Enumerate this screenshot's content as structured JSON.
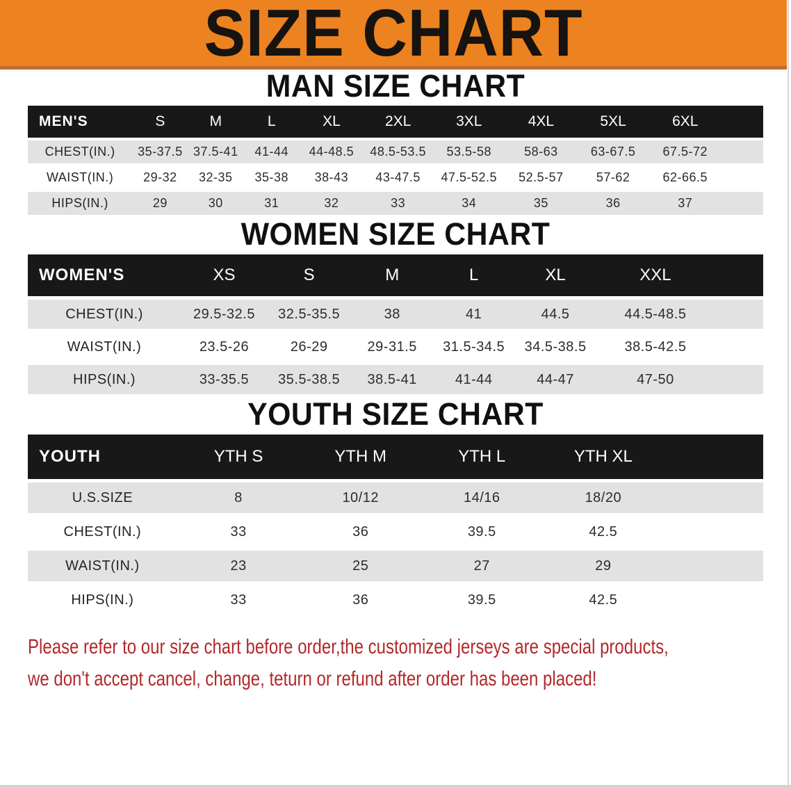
{
  "banner": {
    "title": "SIZE CHART"
  },
  "colors": {
    "banner_orange": "#EC8320",
    "banner_orange_dark_edge": "#BE6C34",
    "table_header_black": "#181818",
    "row_shade_gray": "#E2E2E2",
    "disclaimer_red": "#B2282A"
  },
  "sections": [
    {
      "heading": "MAN SIZE CHART",
      "table": {
        "header_label": "MEN'S",
        "columns": [
          "S",
          "M",
          "L",
          "XL",
          "2XL",
          "3XL",
          "4XL",
          "5XL",
          "6XL"
        ],
        "rows": [
          {
            "label": "CHEST(IN.)",
            "values": [
              "35-37.5",
              "37.5-41",
              "41-44",
              "44-48.5",
              "48.5-53.5",
              "53.5-58",
              "58-63",
              "63-67.5",
              "67.5-72"
            ]
          },
          {
            "label": "WAIST(IN.)",
            "values": [
              "29-32",
              "32-35",
              "35-38",
              "38-43",
              "43-47.5",
              "47.5-52.5",
              "52.5-57",
              "57-62",
              "62-66.5"
            ]
          },
          {
            "label": "HIPS(IN.)",
            "values": [
              "29",
              "30",
              "31",
              "32",
              "33",
              "34",
              "35",
              "36",
              "37"
            ]
          }
        ]
      }
    },
    {
      "heading": "WOMEN SIZE CHART",
      "table": {
        "header_label": "WOMEN'S",
        "columns": [
          "XS",
          "S",
          "M",
          "L",
          "XL",
          "XXL"
        ],
        "rows": [
          {
            "label": "CHEST(IN.)",
            "values": [
              "29.5-32.5",
              "32.5-35.5",
              "38",
              "41",
              "44.5",
              "44.5-48.5"
            ]
          },
          {
            "label": "WAIST(IN.)",
            "values": [
              "23.5-26",
              "26-29",
              "29-31.5",
              "31.5-34.5",
              "34.5-38.5",
              "38.5-42.5"
            ]
          },
          {
            "label": "HIPS(IN.)",
            "values": [
              "33-35.5",
              "35.5-38.5",
              "38.5-41",
              "41-44",
              "44-47",
              "47-50"
            ]
          }
        ]
      }
    },
    {
      "heading": "YOUTH SIZE CHART",
      "table": {
        "header_label": "YOUTH",
        "columns": [
          "YTH S",
          "YTH M",
          "YTH L",
          "YTH XL"
        ],
        "rows": [
          {
            "label": "U.S.SIZE",
            "values": [
              "8",
              "10/12",
              "14/16",
              "18/20"
            ]
          },
          {
            "label": "CHEST(IN.)",
            "values": [
              "33",
              "36",
              "39.5",
              "42.5"
            ]
          },
          {
            "label": "WAIST(IN.)",
            "values": [
              "23",
              "25",
              "27",
              "29"
            ]
          },
          {
            "label": "HIPS(IN.)",
            "values": [
              "33",
              "36",
              "39.5",
              "42.5"
            ]
          }
        ]
      }
    }
  ],
  "disclaimer": {
    "line1": "Please refer to our size chart before order,the customized jerseys are special products,",
    "line2": "we don't accept cancel, change, teturn or refund after order has been placed!"
  }
}
